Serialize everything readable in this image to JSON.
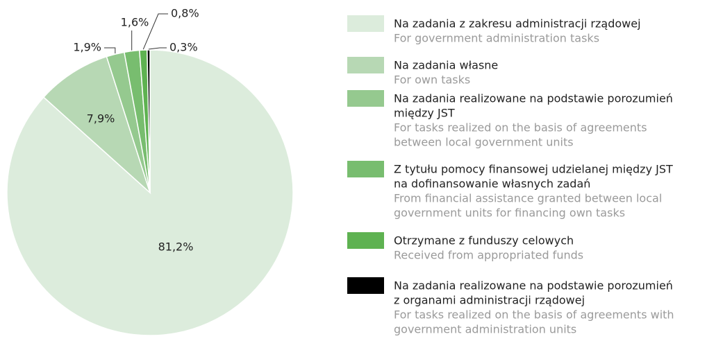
{
  "chart_data": {
    "type": "pie",
    "categories": [
      [
        "Na zadania z zakresu administracji rządowej"
      ],
      [
        "Na zadania własne"
      ],
      [
        "Na zadania realizowane na podstawie porozumień",
        "między JST"
      ],
      [
        "Z tytułu pomocy finansowej udzielanej między JST",
        "na dofinansowanie własnych zadań"
      ],
      [
        "Otrzymane z funduszy celowych"
      ],
      [
        "Na zadania realizowane na podstawie porozumień",
        "z organami administracji rządowej"
      ]
    ],
    "categories_en": [
      [
        "For government administration tasks"
      ],
      [
        "For own tasks"
      ],
      [
        "For tasks realized on the basis of agreements",
        "between local government units"
      ],
      [
        "From financial assistance granted between local",
        "government units for financing own tasks"
      ],
      [
        "Received from appropriated funds"
      ],
      [
        "For tasks realized on the basis of agreements with",
        "government administration units"
      ]
    ],
    "values": [
      81.2,
      7.9,
      1.9,
      1.6,
      0.8,
      0.3
    ],
    "value_labels": [
      "81,2%",
      "7,9%",
      "1,9%",
      "1,6%",
      "0,8%",
      "0,3%"
    ],
    "colors": [
      "#dcecdc",
      "#b7d8b4",
      "#95c98f",
      "#78bd6f",
      "#5eb251",
      "#000000"
    ]
  }
}
